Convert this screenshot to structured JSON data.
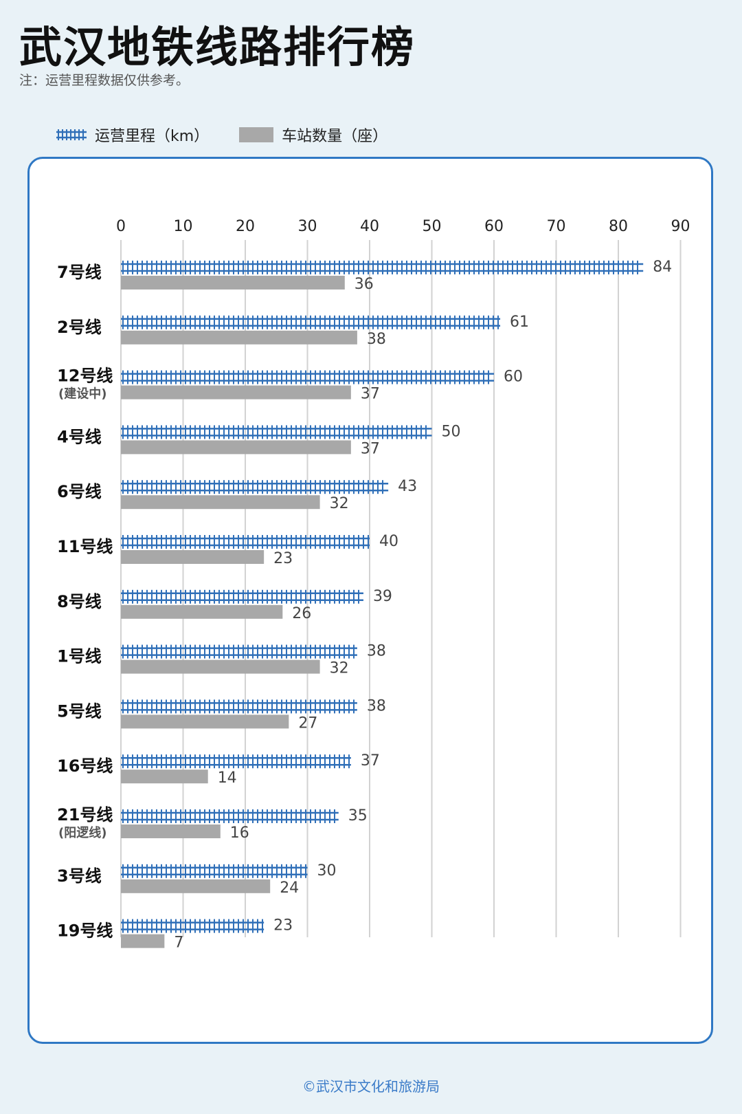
{
  "title": "武汉地铁线路排行榜",
  "note": "注：运营里程数据仅供参考。",
  "source": "©武汉市文化和旅游局",
  "legend": {
    "mileage": "运营里程（km）",
    "stations": "车站数量（座）"
  },
  "colors": {
    "track": "#2f6fb8",
    "tie": "#2f6fb8",
    "stations": "#a8a8a8",
    "panel_border": "#2f78c4",
    "background": "#e9f2f7"
  },
  "chart_data": {
    "type": "bar",
    "orientation": "horizontal",
    "categories": [
      "7号线",
      "2号线",
      "12号线",
      "4号线",
      "6号线",
      "11号线",
      "8号线",
      "1号线",
      "5号线",
      "16号线",
      "21号线",
      "3号线",
      "19号线"
    ],
    "category_sublabels": [
      "",
      "",
      "(建设中)",
      "",
      "",
      "",
      "",
      "",
      "",
      "",
      "(阳逻线)",
      "",
      ""
    ],
    "series": [
      {
        "name": "运营里程（km）",
        "values": [
          84,
          61,
          60,
          50,
          43,
          40,
          39,
          38,
          38,
          37,
          35,
          30,
          23
        ]
      },
      {
        "name": "车站数量（座）",
        "values": [
          36,
          38,
          37,
          37,
          32,
          23,
          26,
          32,
          27,
          14,
          16,
          24,
          7
        ]
      }
    ],
    "xlim": [
      0,
      90
    ],
    "x_ticks": [
      0,
      10,
      20,
      30,
      40,
      50,
      60,
      70,
      80,
      90
    ],
    "x_axis_position": "top",
    "grid": true,
    "legend_position": "top-left"
  }
}
